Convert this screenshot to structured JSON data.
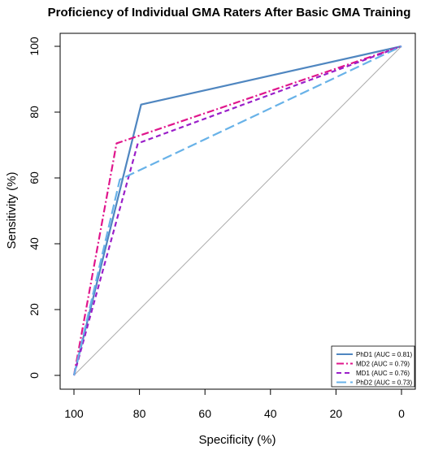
{
  "chart_data": {
    "type": "line",
    "title": "Proficiency of Individual GMA Raters After Basic GMA Training",
    "xlabel": "Specificity (%)",
    "ylabel": "Sensitivity (%)",
    "xlim": [
      100,
      0
    ],
    "ylim": [
      0,
      100
    ],
    "x_reversed": true,
    "xticks": [
      100,
      80,
      60,
      40,
      20,
      0
    ],
    "yticks": [
      0,
      20,
      40,
      60,
      80,
      100
    ],
    "grid": false,
    "legend_position": "bottom-right",
    "reference_line": {
      "x": [
        100,
        0
      ],
      "y": [
        0,
        100
      ],
      "color": "#aaaaaa"
    },
    "series": [
      {
        "name": "PhD1 (AUC = 0.81)",
        "color": "#4f86c0",
        "dash": "solid",
        "x": [
          100,
          79.5,
          0
        ],
        "y": [
          0,
          82.3,
          100
        ]
      },
      {
        "name": "MD2 (AUC = 0.79)",
        "color": "#e0168c",
        "dash": "dashdot",
        "x": [
          100,
          87,
          0
        ],
        "y": [
          0,
          70.5,
          100
        ]
      },
      {
        "name": "MD1 (AUC = 0.76)",
        "color": "#9a1fc9",
        "dash": "dashed",
        "x": [
          100,
          80.5,
          0
        ],
        "y": [
          0,
          70.5,
          100
        ]
      },
      {
        "name": "PhD2 (AUC = 0.73)",
        "color": "#68b2e8",
        "dash": "longdash",
        "x": [
          100,
          86,
          0
        ],
        "y": [
          0,
          59.5,
          100
        ]
      }
    ]
  }
}
